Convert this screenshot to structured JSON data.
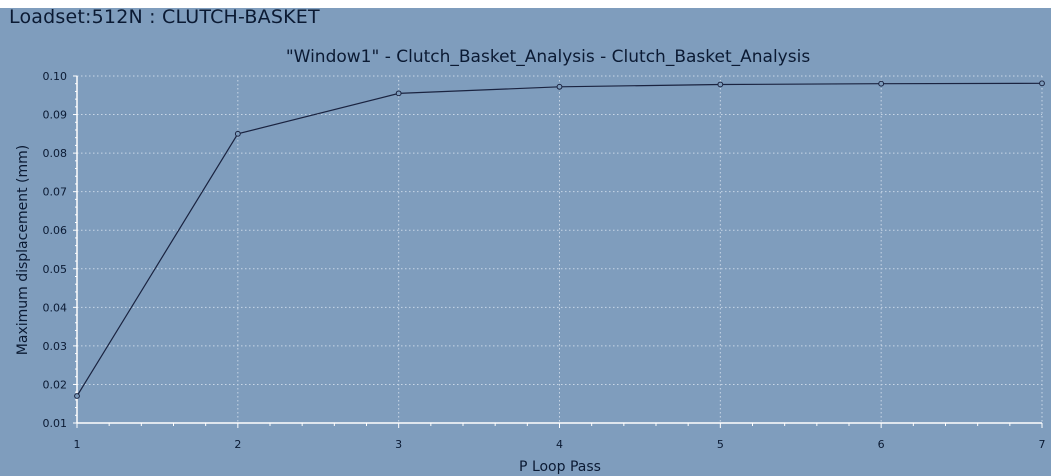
{
  "header": {
    "loadset": "Loadset:512N :  CLUTCH-BASKET"
  },
  "colors": {
    "panel_background": "#7f9dbd",
    "line": "#1a2340",
    "grid": "#c8d6e6",
    "axis": "#ffffff",
    "text": "#0b1a33"
  },
  "chart_data": {
    "type": "line",
    "title": "\"Window1\" - Clutch_Basket_Analysis - Clutch_Basket_Analysis",
    "xlabel": "P Loop Pass",
    "ylabel": "Maximum displacement (mm)",
    "xlim": [
      1,
      7
    ],
    "ylim": [
      0.01,
      0.1
    ],
    "x_ticks": [
      "1",
      "2",
      "3",
      "4",
      "5",
      "6",
      "7"
    ],
    "y_ticks": [
      "0.01",
      "0.02",
      "0.03",
      "0.04",
      "0.05",
      "0.06",
      "0.07",
      "0.08",
      "0.09",
      "0.10"
    ],
    "grid": true,
    "legend": "none",
    "series": [
      {
        "x": [
          1,
          2,
          3,
          4,
          5,
          6,
          7
        ],
        "values": [
          0.017,
          0.085,
          0.0955,
          0.0972,
          0.0978,
          0.098,
          0.0981
        ],
        "markers": "circle"
      }
    ]
  }
}
